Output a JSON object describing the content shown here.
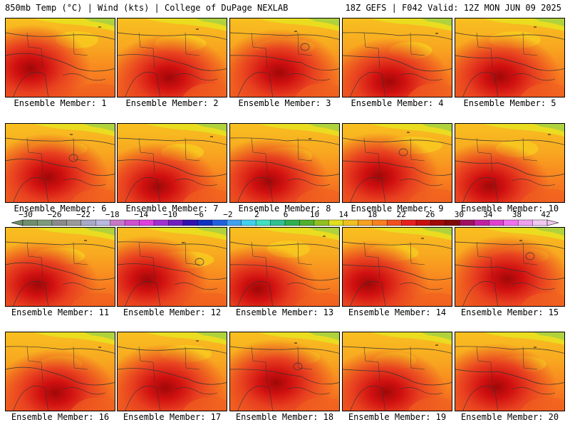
{
  "header": {
    "left": "850mb Temp (°C) | Wind (kts) | College of DuPage NEXLAB",
    "right": "18Z GEFS | F042 Valid: 12Z MON JUN 09 2025"
  },
  "panels": [
    {
      "label": "Ensemble Member: 1"
    },
    {
      "label": "Ensemble Member: 2"
    },
    {
      "label": "Ensemble Member: 3"
    },
    {
      "label": "Ensemble Member: 4"
    },
    {
      "label": "Ensemble Member: 5"
    },
    {
      "label": "Ensemble Member: 6"
    },
    {
      "label": "Ensemble Member: 7"
    },
    {
      "label": "Ensemble Member: 8"
    },
    {
      "label": "Ensemble Member: 9"
    },
    {
      "label": "Ensemble Member: 10"
    },
    {
      "label": "Ensemble Member: 11"
    },
    {
      "label": "Ensemble Member: 12"
    },
    {
      "label": "Ensemble Member: 13"
    },
    {
      "label": "Ensemble Member: 14"
    },
    {
      "label": "Ensemble Member: 15"
    },
    {
      "label": "Ensemble Member: 16"
    },
    {
      "label": "Ensemble Member: 17"
    },
    {
      "label": "Ensemble Member: 18"
    },
    {
      "label": "Ensemble Member: 19"
    },
    {
      "label": "Ensemble Member: 20"
    }
  ],
  "colorbar": {
    "labels": [
      "−30",
      "−26",
      "−22",
      "−18",
      "−14",
      "−10",
      "−6",
      "−2",
      "2",
      "6",
      "10",
      "14",
      "18",
      "22",
      "26",
      "30",
      "34",
      "38",
      "42"
    ],
    "colors": [
      "#6e8e6e",
      "#7d9a7d",
      "#8a8a8a",
      "#9a9a9a",
      "#a8a8c8",
      "#b8b8e0",
      "#c878c8",
      "#d050d0",
      "#e040e0",
      "#a030d0",
      "#7020c0",
      "#3010b0",
      "#1030c0",
      "#2060e0",
      "#40a0f0",
      "#40d0f0",
      "#40e0c0",
      "#30c090",
      "#30b050",
      "#50b030",
      "#90c020",
      "#e0e020",
      "#f0c020",
      "#f8a020",
      "#f88020",
      "#f05020",
      "#e82020",
      "#c81010",
      "#a00808",
      "#800808",
      "#a01060",
      "#c020a0",
      "#e040d0",
      "#f070f0",
      "#f0a0f0",
      "#f0c8f0"
    ]
  }
}
